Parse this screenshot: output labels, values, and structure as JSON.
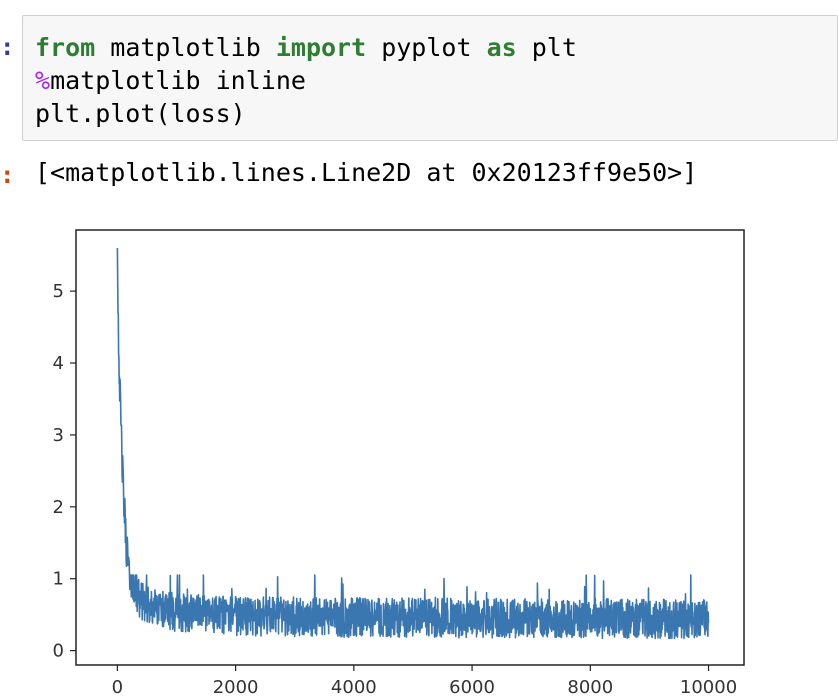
{
  "input_cell": {
    "prompt": ":",
    "lines": [
      {
        "kw1": "from",
        "t1": " matplotlib ",
        "kw2": "import",
        "t2": " pyplot ",
        "kw3": "as",
        "t3": " plt"
      },
      {
        "magic": "%",
        "text": "matplotlib inline"
      },
      {
        "text": "plt.plot(loss)"
      }
    ]
  },
  "output_cell": {
    "prompt": ":",
    "text": "[<matplotlib.lines.Line2D at 0x20123ff9e50>]"
  },
  "chart_data": {
    "type": "line",
    "title": "",
    "xlabel": "",
    "ylabel": "",
    "xlim": [
      -700,
      10600
    ],
    "ylim": [
      -0.2,
      5.85
    ],
    "x_ticks": [
      0,
      2000,
      4000,
      6000,
      8000,
      10000
    ],
    "x_tick_labels": [
      "0",
      "2000",
      "4000",
      "6000",
      "8000",
      "10000"
    ],
    "y_ticks": [
      0,
      1,
      2,
      3,
      4,
      5
    ],
    "y_tick_labels": [
      "0",
      "1",
      "2",
      "3",
      "4",
      "5"
    ],
    "grid": false,
    "line_color": "#3a76b0",
    "series": [
      {
        "x": [
          0,
          20,
          50,
          100,
          150,
          200,
          300,
          400,
          600,
          800,
          1000,
          1500,
          2000,
          3000,
          4000,
          5000,
          6000,
          7000,
          8000,
          9000,
          10000
        ],
        "y": [
          5.6,
          4.3,
          3.4,
          2.2,
          1.5,
          1.1,
          0.85,
          0.7,
          0.6,
          0.55,
          0.52,
          0.5,
          0.48,
          0.47,
          0.46,
          0.46,
          0.45,
          0.45,
          0.45,
          0.44,
          0.44
        ],
        "noise_band": {
          "low": 0.1,
          "high": 1.05
        }
      }
    ]
  }
}
